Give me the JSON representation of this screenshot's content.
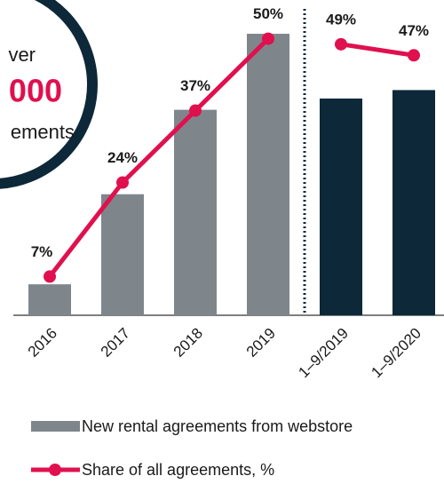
{
  "chart_data": {
    "type": "bar",
    "categories": [
      "2016",
      "2017",
      "2018",
      "2019",
      "1–9/2019",
      "1–9/2020"
    ],
    "divider_after": "2019",
    "ylim": [
      0,
      112
    ],
    "y2lim": [
      0,
      57
    ],
    "series": [
      {
        "name": "New rental agreements from webstore",
        "type": "bar",
        "colors": [
          "#7f868b",
          "#7f868b",
          "#7f868b",
          "#7f868b",
          "#0d2838",
          "#0d2838"
        ],
        "values": [
          11,
          43,
          73,
          100,
          77,
          80
        ]
      },
      {
        "name": "Share of all agreements, %",
        "type": "line",
        "axis": "y2",
        "color": "#e0104f",
        "values": [
          7,
          24,
          37,
          50,
          49,
          47
        ],
        "value_labels": [
          "7%",
          "24%",
          "37%",
          "50%",
          "49%",
          "47%"
        ]
      }
    ],
    "callout": {
      "lines": [
        "ver",
        "000",
        "ements"
      ]
    }
  }
}
